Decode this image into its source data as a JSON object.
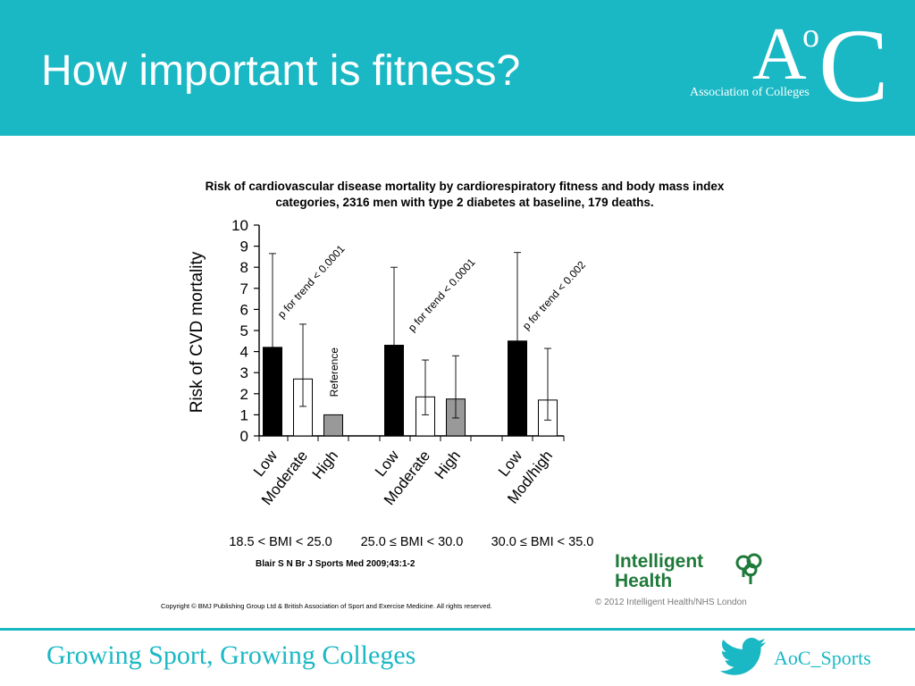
{
  "slide": {
    "title": "How important is fitness?",
    "colors": {
      "header": "#1ab8c4",
      "accent": "#1ab8c4",
      "ih_green": "#1f7a3a"
    }
  },
  "logo": {
    "letter_a": "A",
    "letter_o": "o",
    "letter_c": "C",
    "subtitle": "Association of Colleges"
  },
  "chart_data": {
    "type": "bar",
    "title_line1": "Risk of cardiovascular disease mortality by cardiorespiratory fitness and body mass index",
    "title_line2": "categories, 2316 men with type 2 diabetes at baseline, 179 deaths.",
    "ylabel": "Risk of CVD mortality",
    "ylim": [
      0,
      10
    ],
    "yticks": [
      "0",
      "1",
      "2",
      "3",
      "4",
      "5",
      "6",
      "7",
      "8",
      "9",
      "10"
    ],
    "groups": [
      {
        "label": "18.5 < BMI < 25.0",
        "annotation": "p for trend < 0.0001",
        "bars": [
          {
            "category": "Low",
            "value": 4.2,
            "ci_low": 4.2,
            "ci_high": 8.65,
            "fill": "black"
          },
          {
            "category": "Moderate",
            "value": 2.7,
            "ci_low": 1.4,
            "ci_high": 5.3,
            "fill": "white"
          },
          {
            "category": "High",
            "value": 1.0,
            "ci_low": null,
            "ci_high": null,
            "fill": "gray",
            "note": "Reference"
          }
        ]
      },
      {
        "label": "25.0 ≤ BMI < 30.0",
        "annotation": "p for trend < 0.0001",
        "bars": [
          {
            "category": "Low",
            "value": 4.3,
            "ci_low": 4.3,
            "ci_high": 8.0,
            "fill": "black"
          },
          {
            "category": "Moderate",
            "value": 1.85,
            "ci_low": 1.0,
            "ci_high": 3.6,
            "fill": "white"
          },
          {
            "category": "High",
            "value": 1.75,
            "ci_low": 0.85,
            "ci_high": 3.8,
            "fill": "gray"
          }
        ]
      },
      {
        "label": "30.0 ≤ BMI < 35.0",
        "annotation": "p for trend < 0.002",
        "bars": [
          {
            "category": "Low",
            "value": 4.5,
            "ci_low": 4.5,
            "ci_high": 8.7,
            "fill": "black"
          },
          {
            "category": "Mod/high",
            "value": 1.7,
            "ci_low": 0.75,
            "ci_high": 4.15,
            "fill": "white"
          }
        ]
      }
    ],
    "bar_colors": {
      "black": "#000000",
      "white": "#ffffff",
      "gray": "#999999"
    },
    "legend": "none",
    "grid": false
  },
  "citation": "Blair S N Br J Sports Med 2009;43:1-2",
  "copyright": "Copyright © BMJ Publishing Group Ltd & British Association of Sport and Exercise Medicine. All rights reserved.",
  "intelligent_health": {
    "line1": "Intelligent",
    "line2": "Health",
    "copyright": "© 2012 Intelligent Health/NHS London"
  },
  "footer": {
    "tagline": "Growing Sport, Growing Colleges",
    "twitter_handle": "AoC_Sports"
  }
}
